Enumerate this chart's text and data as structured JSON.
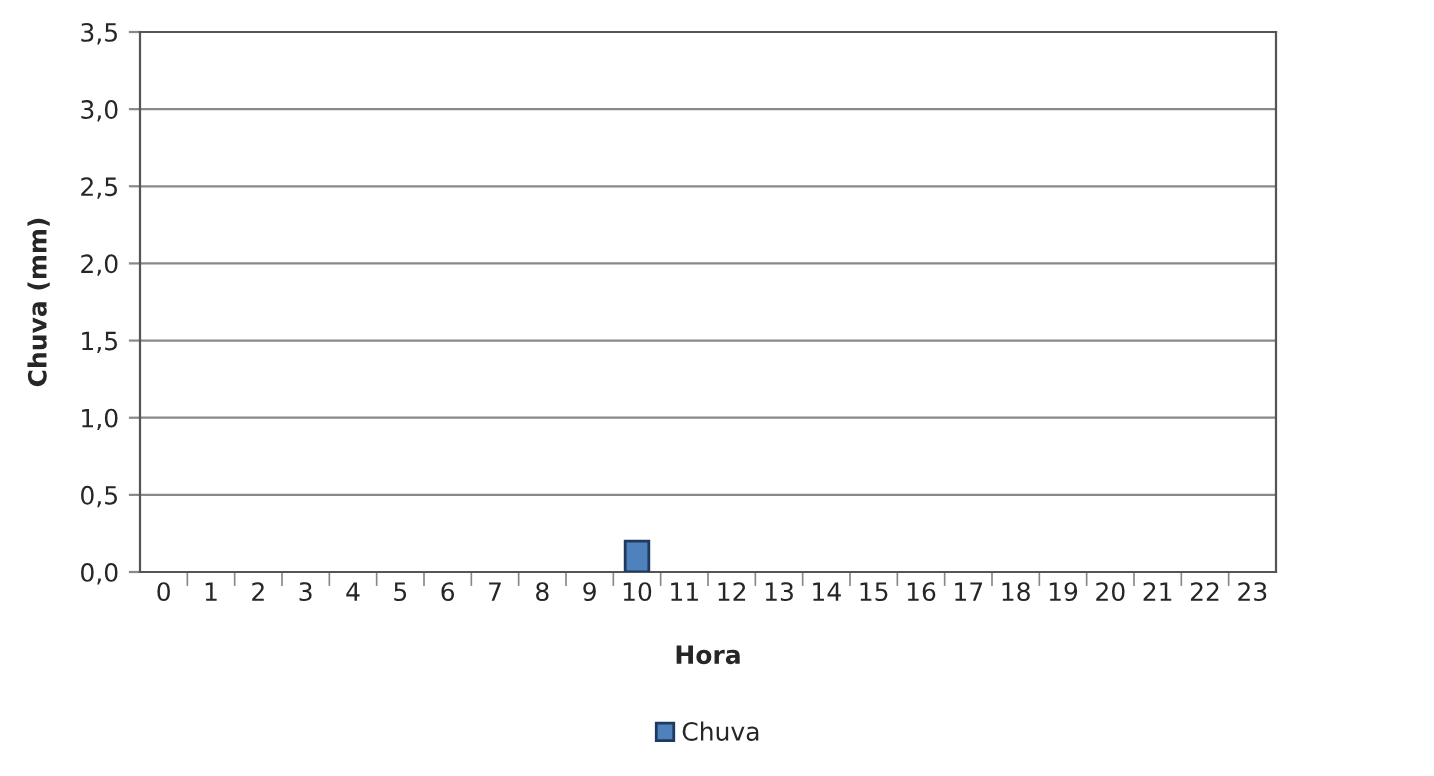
{
  "chart_data": {
    "type": "bar",
    "xlabel": "Hora",
    "ylabel": "Chuva (mm)",
    "categories": [
      "0",
      "1",
      "2",
      "3",
      "4",
      "5",
      "6",
      "7",
      "8",
      "9",
      "10",
      "11",
      "12",
      "13",
      "14",
      "15",
      "16",
      "17",
      "18",
      "19",
      "20",
      "21",
      "22",
      "23"
    ],
    "series": [
      {
        "name": "Chuva",
        "color": "#4f81bd",
        "values": [
          0,
          0,
          0,
          0,
          0,
          0,
          0,
          0,
          0,
          0,
          0.2,
          0,
          0,
          0,
          0,
          0,
          0,
          0,
          0,
          0,
          0,
          0,
          0,
          0
        ]
      }
    ],
    "ylim": [
      0,
      3.5
    ],
    "yticks": [
      {
        "value": 0,
        "label": "0,0"
      },
      {
        "value": 0.5,
        "label": "0,5"
      },
      {
        "value": 1,
        "label": "1,0"
      },
      {
        "value": 1.5,
        "label": "1,5"
      },
      {
        "value": 2,
        "label": "2,0"
      },
      {
        "value": 2.5,
        "label": "2,5"
      },
      {
        "value": 3,
        "label": "3,0"
      },
      {
        "value": 3.5,
        "label": "3,5"
      }
    ],
    "grid": "y",
    "legend": "bottom"
  }
}
